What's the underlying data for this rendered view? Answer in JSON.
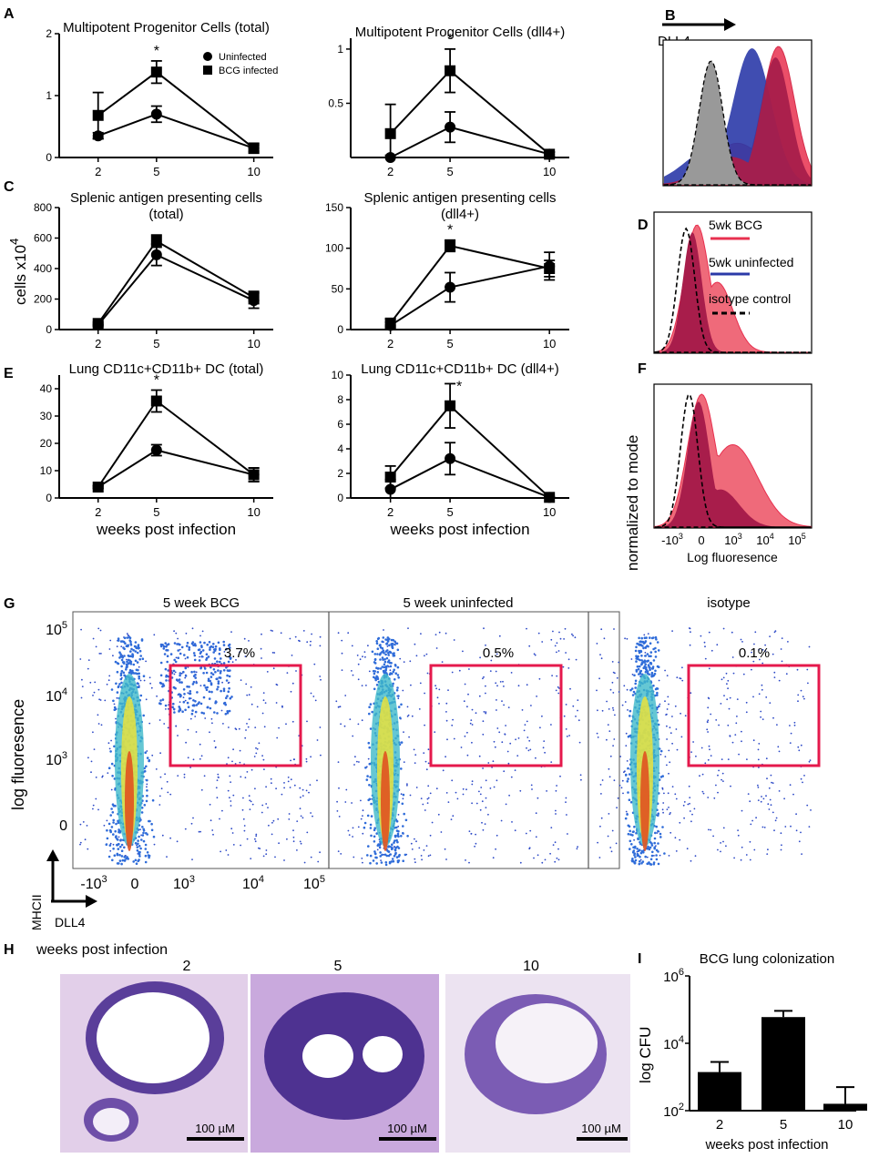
{
  "chart_data": [
    {
      "id": "A1",
      "panel": "A",
      "type": "line",
      "title": "Multipotent Progenitor Cells (total)",
      "x": [
        2,
        5,
        10
      ],
      "xlim": [
        0,
        11
      ],
      "ylim": [
        0,
        2
      ],
      "yticks": [
        0,
        1,
        2
      ],
      "legend": [
        "Uninfected",
        "BCG infected"
      ],
      "star": [
        "*"
      ],
      "series": [
        {
          "name": "Uninfected",
          "marker": "circle",
          "values": [
            0.35,
            0.7,
            0.15
          ],
          "err": [
            0.05,
            0.13,
            0.05
          ]
        },
        {
          "name": "BCG infected",
          "marker": "square",
          "values": [
            0.68,
            1.38,
            0.15
          ],
          "err": [
            0.37,
            0.18,
            0.08
          ]
        }
      ]
    },
    {
      "id": "A2",
      "panel": "A",
      "type": "line",
      "title": "Multipotent Progenitor Cells (dll4+)",
      "x": [
        2,
        5,
        10
      ],
      "xlim": [
        0,
        11
      ],
      "ylim": [
        0,
        1.1
      ],
      "yticks": [
        0.5,
        1
      ],
      "star": [
        "*"
      ],
      "series": [
        {
          "name": "Uninfected",
          "marker": "circle",
          "values": [
            0.0,
            0.28,
            0.03
          ],
          "err": [
            0.02,
            0.14,
            0.02
          ]
        },
        {
          "name": "BCG infected",
          "marker": "square",
          "values": [
            0.22,
            0.8,
            0.03
          ],
          "err": [
            0.27,
            0.2,
            0.02
          ]
        }
      ]
    },
    {
      "id": "C1",
      "panel": "C",
      "type": "line",
      "title": "Splenic antigen presenting cells",
      "subtitle": "(total)",
      "ylabel": "cells x10",
      "ylabel_exp": "4",
      "x": [
        2,
        5,
        10
      ],
      "xlim": [
        0,
        11
      ],
      "ylim": [
        0,
        800
      ],
      "yticks": [
        0,
        200,
        400,
        600,
        800
      ],
      "series": [
        {
          "name": "Uninfected",
          "marker": "circle",
          "values": [
            30,
            490,
            190
          ],
          "err": [
            10,
            70,
            50
          ]
        },
        {
          "name": "BCG infected",
          "marker": "square",
          "values": [
            40,
            580,
            210
          ],
          "err": [
            10,
            40,
            40
          ]
        }
      ]
    },
    {
      "id": "C2",
      "panel": "C",
      "type": "line",
      "title": "Splenic antigen presenting cells",
      "subtitle": "(dll4+)",
      "x": [
        2,
        5,
        10
      ],
      "xlim": [
        0,
        11
      ],
      "ylim": [
        0,
        150
      ],
      "yticks": [
        0,
        50,
        100,
        150
      ],
      "star": [
        "*"
      ],
      "series": [
        {
          "name": "Uninfected",
          "marker": "circle",
          "values": [
            5,
            52,
            78
          ],
          "err": [
            4,
            18,
            17
          ]
        },
        {
          "name": "BCG infected",
          "marker": "square",
          "values": [
            8,
            103,
            75
          ],
          "err": [
            5,
            7,
            10
          ]
        }
      ]
    },
    {
      "id": "E1",
      "panel": "E",
      "type": "line",
      "title": "Lung CD11c+CD11b+ DC (total)",
      "xlabel": "weeks post infection",
      "x": [
        2,
        5,
        10
      ],
      "xlim": [
        0,
        11
      ],
      "ylim": [
        0,
        45
      ],
      "yticks": [
        0,
        10,
        20,
        30,
        40
      ],
      "star": [
        "*"
      ],
      "series": [
        {
          "name": "Uninfected",
          "marker": "circle",
          "values": [
            4,
            17.5,
            8.5
          ],
          "err": [
            0.5,
            2,
            2.5
          ]
        },
        {
          "name": "BCG infected",
          "marker": "square",
          "values": [
            4,
            35.5,
            8.5
          ],
          "err": [
            0.5,
            4,
            2.5
          ]
        }
      ]
    },
    {
      "id": "E2",
      "panel": "E",
      "type": "line",
      "title": "Lung CD11c+CD11b+ DC (dll4+)",
      "xlabel": "weeks post infection",
      "x": [
        2,
        5,
        10
      ],
      "xlim": [
        0,
        11
      ],
      "ylim": [
        0,
        10
      ],
      "yticks": [
        0,
        2,
        4,
        6,
        8,
        10
      ],
      "star": [
        "*"
      ],
      "series": [
        {
          "name": "Uninfected",
          "marker": "circle",
          "values": [
            0.7,
            3.2,
            0.05
          ],
          "err": [
            0.8,
            1.3,
            0.05
          ]
        },
        {
          "name": "BCG infected",
          "marker": "square",
          "values": [
            1.7,
            7.5,
            0.05
          ],
          "err": [
            0.9,
            1.8,
            0.05
          ]
        }
      ]
    },
    {
      "id": "B",
      "panel": "B",
      "type": "area",
      "marker_label": "DLL4",
      "curves": [
        {
          "name": "isotype",
          "color": "#999999",
          "style": "dashed",
          "mode": 0.32,
          "width": 0.08
        },
        {
          "name": "5wk uninfected",
          "color": "#2b3aa8",
          "mode": 0.6,
          "width": 0.13
        },
        {
          "name": "5wk BCG",
          "color": "#e8304f",
          "mode": 0.78,
          "width": 0.11
        }
      ]
    },
    {
      "id": "D",
      "panel": "D",
      "type": "area",
      "legend": [
        "5wk BCG",
        "5wk uninfected",
        "isotype control"
      ],
      "legend_colors": [
        "#e8304f",
        "#2b3aa8",
        "#000000"
      ]
    },
    {
      "id": "F",
      "panel": "F",
      "type": "area",
      "ylabel": "normalized to mode",
      "xlabel": "Log fluoresence",
      "xtick_bases": [
        "-10",
        "0",
        "10",
        "10",
        "10"
      ],
      "xtick_exps": [
        "3",
        "",
        "3",
        "4",
        "5"
      ]
    },
    {
      "id": "G",
      "panel": "G",
      "type": "scatter",
      "ylabel": "log fluoresence",
      "ytick_bases": [
        "10",
        "10",
        "10",
        "0"
      ],
      "ytick_exps": [
        "5",
        "4",
        "3",
        ""
      ],
      "xtick_bases": [
        "-10",
        "0",
        "10",
        "10",
        "10"
      ],
      "xtick_exps": [
        "3",
        "",
        "3",
        "4",
        "5"
      ],
      "axis_y": "MHCII",
      "axis_x": "DLL4",
      "plots": [
        {
          "title": "5 week BCG",
          "gate_percent": "3.7%"
        },
        {
          "title": "5 week uninfected",
          "gate_percent": "0.5%"
        },
        {
          "title": "isotype",
          "gate_percent": "0.1%"
        }
      ]
    },
    {
      "id": "I",
      "panel": "I",
      "type": "bar",
      "title": "BCG lung colonization",
      "ylabel": "log CFU",
      "xlabel": "weeks post infection",
      "categories": [
        "2",
        "5",
        "10"
      ],
      "values": [
        1400,
        60000,
        160
      ],
      "err_upper": [
        2800,
        92000,
        500
      ],
      "ylog": true,
      "ylim": [
        100,
        1000000
      ],
      "ytick_exps": [
        "2",
        "4",
        "6"
      ]
    }
  ],
  "panel_labels": [
    "A",
    "B",
    "C",
    "D",
    "E",
    "F",
    "G",
    "H",
    "I"
  ],
  "histology": {
    "caption": "weeks post infection",
    "panels": [
      {
        "week": "2",
        "scale_bar": "100 µM"
      },
      {
        "week": "5",
        "scale_bar": "100 µM"
      },
      {
        "week": "10",
        "scale_bar": "100 µM"
      }
    ]
  },
  "colors": {
    "bcg": "#e8304f",
    "bcg_dark": "#a81d4b",
    "uninfected": "#2b3aa8",
    "isotype": "#999999",
    "gate": "#e5194c"
  }
}
